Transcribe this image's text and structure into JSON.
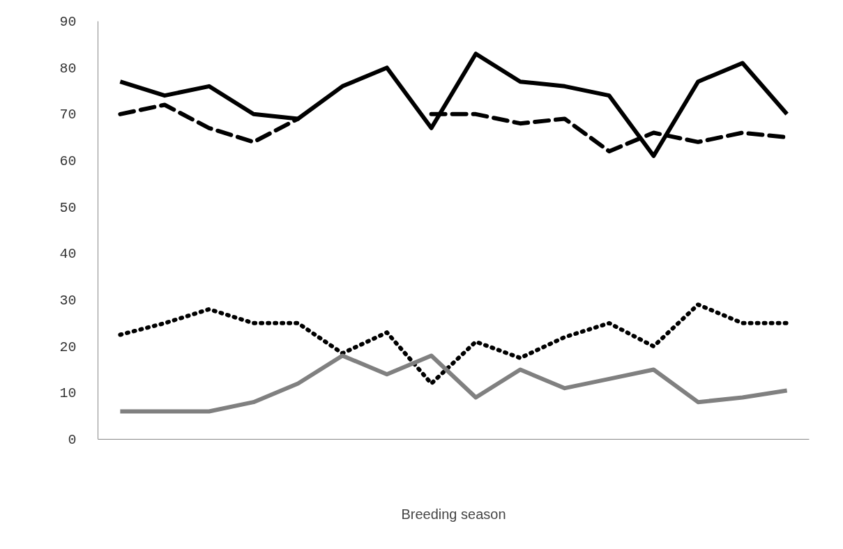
{
  "chart_data": {
    "type": "line",
    "xlabel": "Breeding season",
    "categories": [
      null,
      null,
      null,
      null,
      null,
      null,
      null,
      null,
      null,
      null,
      null,
      null,
      null,
      null,
      null,
      null
    ],
    "series": [
      {
        "color": "#000000",
        "line_style": "solid",
        "values": [
          77,
          74,
          76,
          70,
          69,
          76,
          80,
          67,
          83,
          77,
          76,
          74,
          61,
          77,
          81,
          70
        ]
      },
      {
        "color": "#000000",
        "line_style": "dashed",
        "values": [
          70,
          72,
          67,
          64,
          69,
          null,
          null,
          70,
          70,
          68,
          69,
          62,
          66,
          64,
          66,
          65
        ]
      },
      {
        "color": "#000000",
        "line_style": "dotted",
        "values": [
          22.5,
          25,
          28,
          25,
          25,
          18.5,
          23,
          12,
          21,
          17.5,
          22,
          25,
          20,
          29,
          25,
          25
        ]
      },
      {
        "color": "#808080",
        "line_style": "solid",
        "values": [
          6,
          6,
          6,
          8,
          12,
          18,
          14,
          18,
          9,
          15,
          11,
          13,
          15,
          8,
          9,
          10.5
        ]
      }
    ],
    "ylim": [
      0,
      90
    ],
    "yticks": [
      0,
      10,
      20,
      30,
      40,
      50,
      60,
      70,
      80,
      90
    ],
    "grid": false,
    "marker": "none"
  }
}
